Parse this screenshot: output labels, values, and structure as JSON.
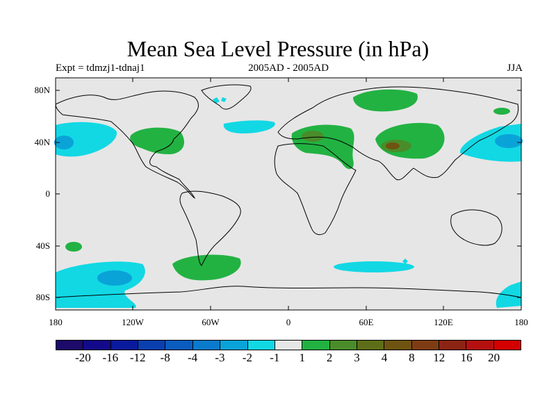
{
  "title": "Mean Sea Level Pressure (in hPa)",
  "expt": "Expt = tdmzj1-tdnaj1",
  "period": "2005AD - 2005AD",
  "season": "JJA",
  "lat_labels": [
    "80N",
    "40N",
    "0",
    "40S",
    "80S"
  ],
  "lon_labels": [
    "180",
    "120W",
    "60W",
    "0",
    "60E",
    "120E",
    "180"
  ],
  "colorbar": {
    "colors": [
      "#1e0a6a",
      "#120a8a",
      "#0a1a9c",
      "#0a3fb0",
      "#0a5cbe",
      "#0a7acc",
      "#0aa3d8",
      "#12d8e4",
      "#e6e6e6",
      "#22b242",
      "#4a8c2a",
      "#5e6e18",
      "#6e5410",
      "#7e3c14",
      "#8c2414",
      "#b41010",
      "#d40000"
    ],
    "labels": [
      "-20",
      "-16",
      "-12",
      "-8",
      "-4",
      "-3",
      "-2",
      "-1",
      "1",
      "2",
      "3",
      "4",
      "8",
      "12",
      "16",
      "20"
    ]
  }
}
